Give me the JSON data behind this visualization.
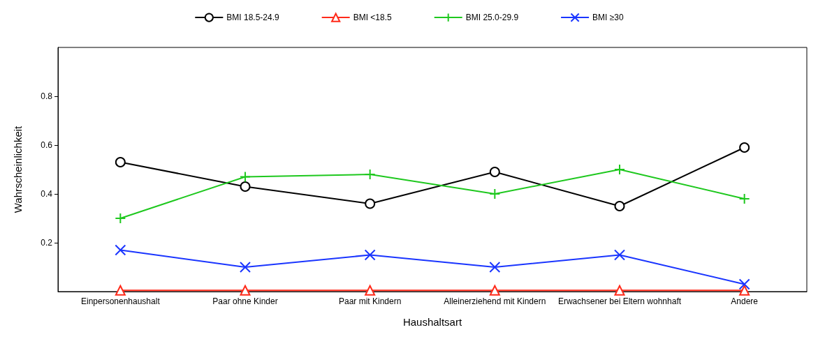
{
  "chart_data": {
    "type": "line",
    "xlabel": "Haushaltsart",
    "ylabel": "Wahrscheinlichkeit",
    "categories": [
      "Einpersonenhaushalt",
      "Paar ohne Kinder",
      "Paar mit Kindern",
      "Alleinerziehend mit Kindern",
      "Erwachsener bei Eltern wohnhaft",
      "Andere"
    ],
    "series": [
      {
        "name": "BMI 18.5-24.9",
        "color": "#000000",
        "marker": "circle",
        "values": [
          0.53,
          0.43,
          0.36,
          0.49,
          0.35,
          0.59
        ]
      },
      {
        "name": "BMI <18.5",
        "color": "#ff2a1a",
        "marker": "triangle",
        "values": [
          0.005,
          0.005,
          0.005,
          0.005,
          0.005,
          0.005
        ]
      },
      {
        "name": "BMI 25.0-29.9",
        "color": "#1ec81e",
        "marker": "cross",
        "values": [
          0.3,
          0.47,
          0.48,
          0.4,
          0.5,
          0.38
        ]
      },
      {
        "name": "BMI ≥30",
        "color": "#1a35ff",
        "marker": "x",
        "values": [
          0.17,
          0.1,
          0.15,
          0.1,
          0.15,
          0.03
        ]
      }
    ],
    "ylim": [
      0,
      1
    ],
    "yticks": [
      0.2,
      0.4,
      0.6,
      0.8
    ],
    "legend": "top",
    "grid": false
  }
}
